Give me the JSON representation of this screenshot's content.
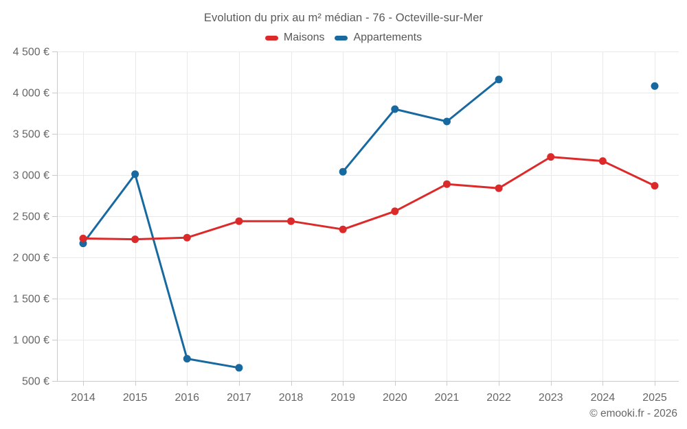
{
  "chart_data": {
    "type": "line",
    "title": "Evolution du prix au m² médian - 76 - Octeville-sur-Mer",
    "copyright": "© emooki.fr - 2026",
    "legend_position": "top",
    "grid": true,
    "ylim": [
      500,
      4500
    ],
    "y_tick_step": 500,
    "x_labels": [
      "2014",
      "2015",
      "2016",
      "2017",
      "2018",
      "2019",
      "2020",
      "2021",
      "2022",
      "2023",
      "2024",
      "2025"
    ],
    "y_ticks": [
      {
        "value": 4500,
        "label": "4 500 €"
      },
      {
        "value": 4000,
        "label": "4 000 €"
      },
      {
        "value": 3500,
        "label": "3 500 €"
      },
      {
        "value": 3000,
        "label": "3 000 €"
      },
      {
        "value": 2500,
        "label": "2 500 €"
      },
      {
        "value": 2000,
        "label": "2 000 €"
      },
      {
        "value": 1500,
        "label": "1 500 €"
      },
      {
        "value": 1000,
        "label": "1 000 €"
      },
      {
        "value": 500,
        "label": "500 €"
      }
    ],
    "series": [
      {
        "name": "Maisons",
        "color": "#dc2a2a",
        "values": [
          2230,
          2220,
          2240,
          2440,
          2440,
          2340,
          2560,
          2890,
          2840,
          3220,
          3170,
          2870
        ]
      },
      {
        "name": "Appartements",
        "color": "#17699f",
        "values": [
          2170,
          3010,
          770,
          660,
          null,
          3040,
          3800,
          3650,
          4160,
          null,
          null,
          4080
        ]
      }
    ],
    "colors": {
      "grid": "#e9e9e9",
      "axis": "#c9c9c9",
      "tick_text": "#666666"
    }
  }
}
